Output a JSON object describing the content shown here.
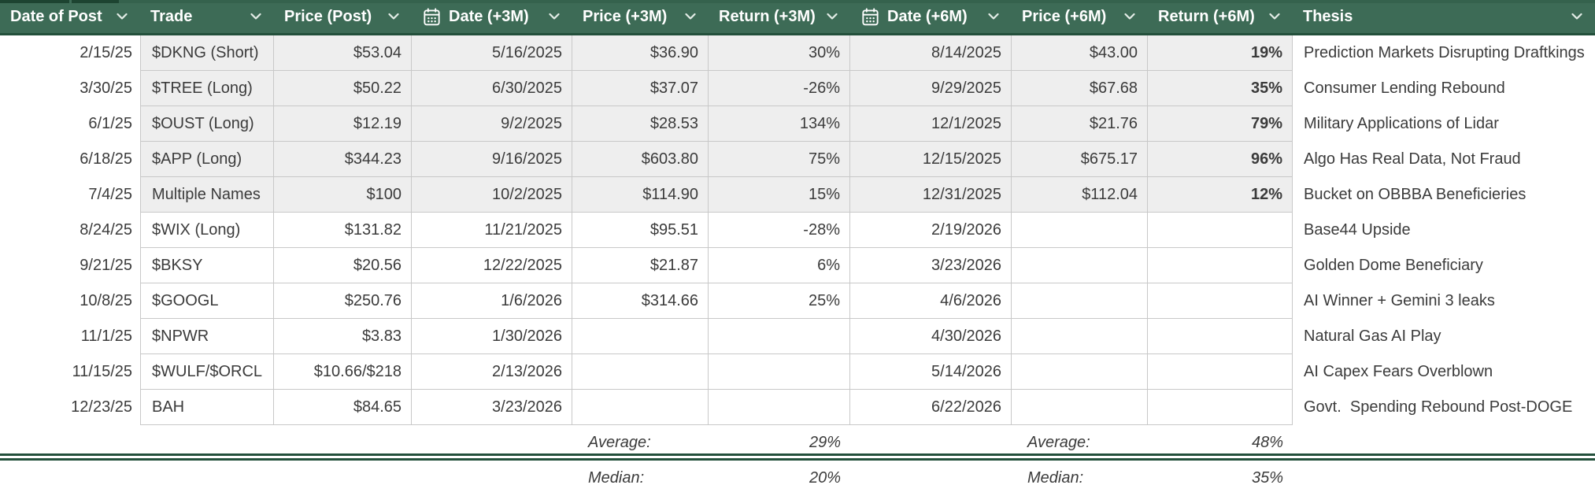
{
  "colors": {
    "header_bg": "#3d6b56",
    "header_text": "#ffffff",
    "header_border": "#23503b",
    "topstrip_dark": "#1d4431",
    "topstrip_mid": "#35624d",
    "grid_line": "#c8c8c8",
    "shaded_row": "#eeeeee",
    "body_text": "#3b3b3b",
    "divider": "#23503b",
    "white": "#ffffff"
  },
  "table": {
    "columns": [
      {
        "key": "date-of-post",
        "label": "Date of Post",
        "calendar_icon": false,
        "align": "date"
      },
      {
        "key": "trade",
        "label": "Trade",
        "calendar_icon": false,
        "align": "left"
      },
      {
        "key": "price-post",
        "label": "Price (Post)",
        "calendar_icon": false,
        "align": "right"
      },
      {
        "key": "date-3m",
        "label": "Date (+3M)",
        "calendar_icon": true,
        "align": "right"
      },
      {
        "key": "price-3m",
        "label": "Price (+3M)",
        "calendar_icon": false,
        "align": "right"
      },
      {
        "key": "return-3m",
        "label": "Return (+3M)",
        "calendar_icon": false,
        "align": "right"
      },
      {
        "key": "date-6m",
        "label": "Date (+6M)",
        "calendar_icon": true,
        "align": "right"
      },
      {
        "key": "price-6m",
        "label": "Price (+6M)",
        "calendar_icon": false,
        "align": "right"
      },
      {
        "key": "return-6m",
        "label": "Return (+6M)",
        "calendar_icon": false,
        "align": "right",
        "bold_values": true
      },
      {
        "key": "thesis",
        "label": "Thesis",
        "calendar_icon": false,
        "align": "left"
      }
    ],
    "rows": [
      {
        "shaded": true,
        "cells": [
          "2/15/25",
          "$DKNG (Short)",
          "$53.04",
          "5/16/2025",
          "$36.90",
          "30%",
          "8/14/2025",
          "$43.00",
          "19%",
          "Prediction Markets Disrupting Draftkings"
        ]
      },
      {
        "shaded": true,
        "cells": [
          "3/30/25",
          "$TREE (Long)",
          "$50.22",
          "6/30/2025",
          "$37.07",
          "-26%",
          "9/29/2025",
          "$67.68",
          "35%",
          "Consumer Lending Rebound"
        ]
      },
      {
        "shaded": true,
        "cells": [
          "6/1/25",
          "$OUST (Long)",
          "$12.19",
          "9/2/2025",
          "$28.53",
          "134%",
          "12/1/2025",
          "$21.76",
          "79%",
          "Military Applications of Lidar"
        ]
      },
      {
        "shaded": true,
        "cells": [
          "6/18/25",
          "$APP (Long)",
          "$344.23",
          "9/16/2025",
          "$603.80",
          "75%",
          "12/15/2025",
          "$675.17",
          "96%",
          "Algo Has Real Data, Not Fraud"
        ]
      },
      {
        "shaded": true,
        "cells": [
          "7/4/25",
          "Multiple Names",
          "$100",
          "10/2/2025",
          "$114.90",
          "15%",
          "12/31/2025",
          "$112.04",
          "12%",
          "Bucket on OBBBA Beneficieries"
        ]
      },
      {
        "shaded": false,
        "cells": [
          "8/24/25",
          "$WIX (Long)",
          "$131.82",
          "11/21/2025",
          "$95.51",
          "-28%",
          "2/19/2026",
          "",
          "",
          "Base44 Upside"
        ]
      },
      {
        "shaded": false,
        "cells": [
          "9/21/25",
          "$BKSY",
          "$20.56",
          "12/22/2025",
          "$21.87",
          "6%",
          "3/23/2026",
          "",
          "",
          "Golden Dome Beneficiary"
        ]
      },
      {
        "shaded": false,
        "cells": [
          "10/8/25",
          "$GOOGL",
          "$250.76",
          "1/6/2026",
          "$314.66",
          "25%",
          "4/6/2026",
          "",
          "",
          "AI Winner + Gemini 3 leaks"
        ]
      },
      {
        "shaded": false,
        "cells": [
          "11/1/25",
          "$NPWR",
          "$3.83",
          "1/30/2026",
          "",
          "",
          "4/30/2026",
          "",
          "",
          "Natural Gas AI Play"
        ]
      },
      {
        "shaded": false,
        "cells": [
          "11/15/25",
          "$WULF/$ORCL",
          "$10.66/$218",
          "2/13/2026",
          "",
          "",
          "5/14/2026",
          "",
          "",
          "AI Capex Fears Overblown"
        ]
      },
      {
        "shaded": false,
        "cells": [
          "12/23/25",
          "BAH",
          "$84.65",
          "3/23/2026",
          "",
          "",
          "6/22/2026",
          "",
          "",
          "Govt.  Spending Rebound Post-DOGE"
        ]
      }
    ],
    "summary": [
      {
        "label_3m": "Average:",
        "value_3m": "29%",
        "label_6m": "Average:",
        "value_6m": "48%"
      },
      {
        "label_3m": "Median:",
        "value_3m": "20%",
        "label_6m": "Median:",
        "value_6m": "35%"
      }
    ]
  }
}
